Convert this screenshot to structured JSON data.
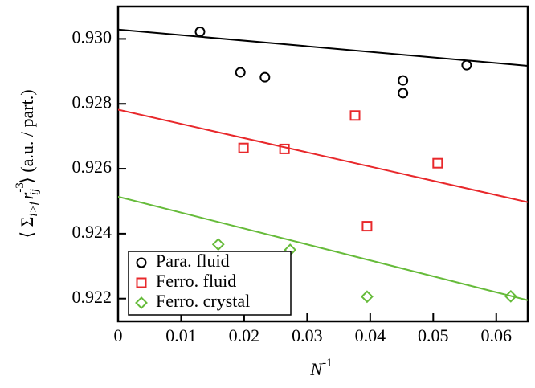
{
  "chart_data": {
    "type": "scatter",
    "xlabel": {
      "base": "N",
      "sup": "-1"
    },
    "ylabel": {
      "open": "⟨ Σ",
      "sub1": "i>j",
      "r": "r",
      "sup": "-3",
      "sub2": "ij",
      "close": "⟩ (a.u. / part.)"
    },
    "xlim": [
      0,
      0.065
    ],
    "ylim": [
      0.9213,
      0.931
    ],
    "xticks": [
      0,
      0.01,
      0.02,
      0.03,
      0.04,
      0.05,
      0.06
    ],
    "yticks": [
      0.922,
      0.924,
      0.926,
      0.928,
      {
        "value": 0.93,
        "label": "0.930"
      }
    ],
    "legend": "lower left",
    "series": [
      {
        "name": "Para. fluid",
        "color": "#000000",
        "marker": "circle",
        "x": [
          0.013,
          0.0194,
          0.0233,
          0.0452,
          0.0452,
          0.0553
        ],
        "values": [
          0.93022,
          0.92897,
          0.92882,
          0.92872,
          0.92833,
          0.92919
        ]
      },
      {
        "name": "Ferro. fluid",
        "color": "#e8282b",
        "marker": "square",
        "x": [
          0.0199,
          0.0264,
          0.0376,
          0.0395,
          0.0507
        ],
        "values": [
          0.92664,
          0.92661,
          0.92764,
          0.92423,
          0.92617
        ]
      },
      {
        "name": "Ferro. crystal",
        "color": "#66bb3a",
        "marker": "diamond",
        "x": [
          0.0159,
          0.0273,
          0.0395,
          0.0623
        ],
        "values": [
          0.92367,
          0.9235,
          0.92206,
          0.92207
        ]
      }
    ],
    "fits": [
      {
        "color": "#000000",
        "x": [
          0,
          0.065
        ],
        "values": [
          0.93029,
          0.92917
        ]
      },
      {
        "color": "#e8282b",
        "x": [
          0,
          0.065
        ],
        "values": [
          0.92782,
          0.92497
        ]
      },
      {
        "color": "#66bb3a",
        "x": [
          0,
          0.065
        ],
        "values": [
          0.92514,
          0.92195
        ]
      }
    ]
  }
}
